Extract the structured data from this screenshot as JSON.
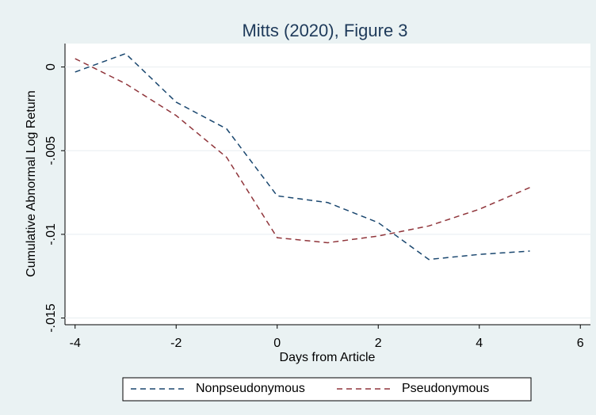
{
  "chart_data": {
    "type": "line",
    "title": "Mitts (2020), Figure 3",
    "x_label": "Days from Article",
    "y_label": "Cumulative Abnormal Log Return",
    "x": [
      -4,
      -3,
      -2,
      -1,
      0,
      1,
      2,
      3,
      4,
      5
    ],
    "series": [
      {
        "name": "Nonpseudonymous",
        "color": "#1a476f",
        "values": [
          -0.0003,
          0.0008,
          -0.0021,
          -0.0037,
          -0.0077,
          -0.0081,
          -0.0093,
          -0.0115,
          -0.0112,
          -0.011
        ]
      },
      {
        "name": "Pseudonymous",
        "color": "#90353b",
        "values": [
          0.0005,
          -0.001,
          -0.0029,
          -0.0054,
          -0.0102,
          -0.0105,
          -0.0101,
          -0.0095,
          -0.0085,
          -0.0072
        ]
      }
    ],
    "xlim": [
      -4.2,
      6.2
    ],
    "xticks": [
      -4,
      -2,
      0,
      2,
      4,
      6
    ],
    "ylim": [
      -0.0154,
      0.0014
    ],
    "yticks": [
      {
        "value": 0,
        "label": "0"
      },
      {
        "value": -0.005,
        "label": "-.005"
      },
      {
        "value": -0.01,
        "label": "-.01"
      },
      {
        "value": -0.015,
        "label": "-.015"
      }
    ],
    "grid": true,
    "legend": "bottom"
  }
}
